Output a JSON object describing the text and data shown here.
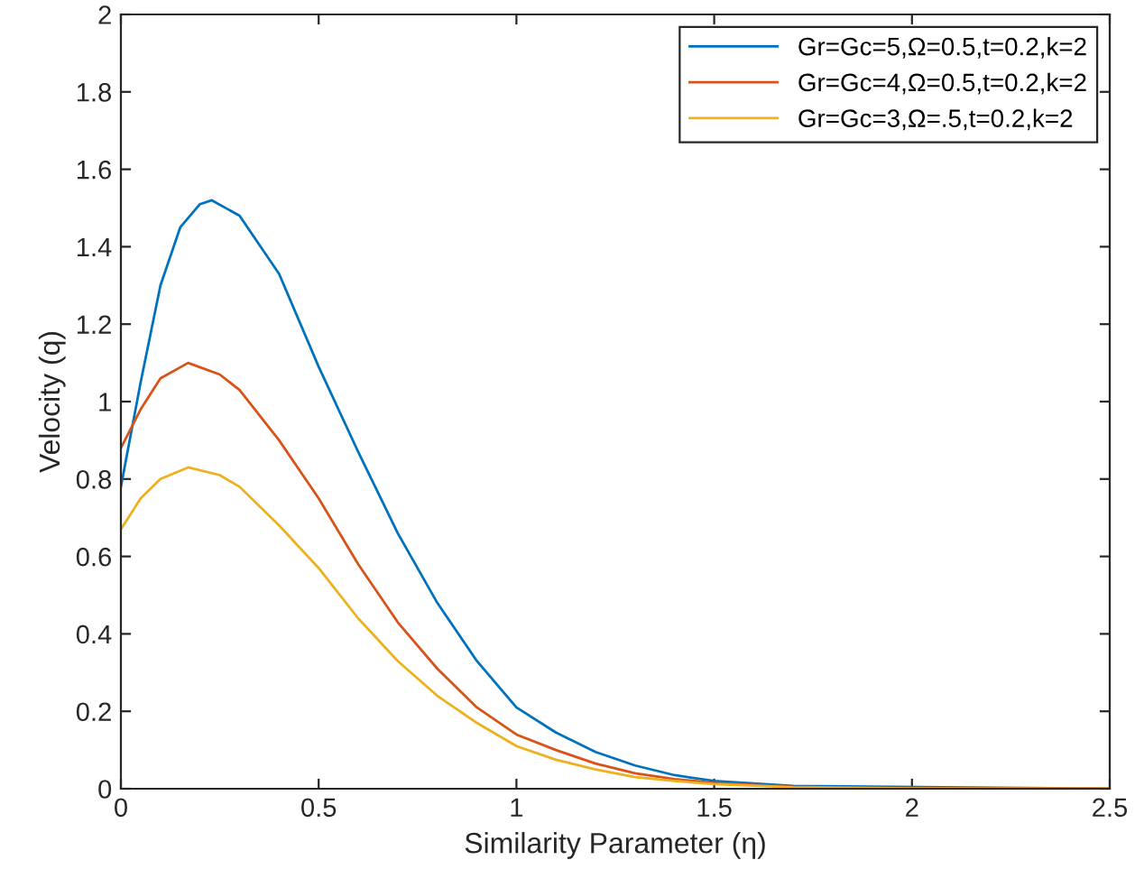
{
  "chart_data": {
    "type": "line",
    "xlabel": "Similarity Parameter (η)",
    "ylabel": "Velocity (q)",
    "xlim": [
      0,
      2.5
    ],
    "ylim": [
      0,
      2
    ],
    "xticks": [
      0,
      0.5,
      1,
      1.5,
      2,
      2.5
    ],
    "yticks": [
      0,
      0.2,
      0.4,
      0.6,
      0.8,
      1,
      1.2,
      1.4,
      1.6,
      1.8,
      2
    ],
    "grid": false,
    "legend": "top right",
    "marker": "none",
    "line_style": "solid",
    "series": [
      {
        "name": "Gr=Gc=5,Ω=0.5,t=0.2,k=2",
        "color": "#0072bd",
        "x": [
          0,
          0.05,
          0.1,
          0.15,
          0.2,
          0.23,
          0.3,
          0.4,
          0.5,
          0.6,
          0.7,
          0.8,
          0.9,
          1.0,
          1.1,
          1.2,
          1.3,
          1.4,
          1.5,
          1.7,
          2.5
        ],
        "values": [
          0.78,
          1.05,
          1.3,
          1.45,
          1.51,
          1.52,
          1.48,
          1.33,
          1.09,
          0.87,
          0.66,
          0.48,
          0.33,
          0.21,
          0.145,
          0.095,
          0.06,
          0.035,
          0.02,
          0.007,
          0
        ]
      },
      {
        "name": "Gr=Gc=4,Ω=0.5,t=0.2,k=2",
        "color": "#d95319",
        "x": [
          0,
          0.05,
          0.1,
          0.17,
          0.25,
          0.3,
          0.4,
          0.5,
          0.6,
          0.7,
          0.8,
          0.9,
          1.0,
          1.1,
          1.2,
          1.3,
          1.4,
          1.5,
          1.7,
          2.0,
          2.5
        ],
        "values": [
          0.88,
          0.98,
          1.06,
          1.1,
          1.07,
          1.03,
          0.9,
          0.75,
          0.58,
          0.43,
          0.31,
          0.21,
          0.14,
          0.1,
          0.065,
          0.04,
          0.025,
          0.015,
          0.005,
          0.001,
          0
        ]
      },
      {
        "name": "Gr=Gc=3,Ω=.5,t=0.2,k=2",
        "color": "#edb120",
        "x": [
          0,
          0.05,
          0.1,
          0.17,
          0.25,
          0.3,
          0.4,
          0.5,
          0.6,
          0.7,
          0.8,
          0.9,
          1.0,
          1.1,
          1.2,
          1.3,
          1.4,
          1.5,
          1.7,
          2.0,
          2.5
        ],
        "values": [
          0.67,
          0.75,
          0.8,
          0.83,
          0.81,
          0.78,
          0.68,
          0.57,
          0.44,
          0.33,
          0.24,
          0.17,
          0.11,
          0.075,
          0.05,
          0.03,
          0.02,
          0.012,
          0.004,
          0.001,
          0
        ]
      }
    ]
  }
}
